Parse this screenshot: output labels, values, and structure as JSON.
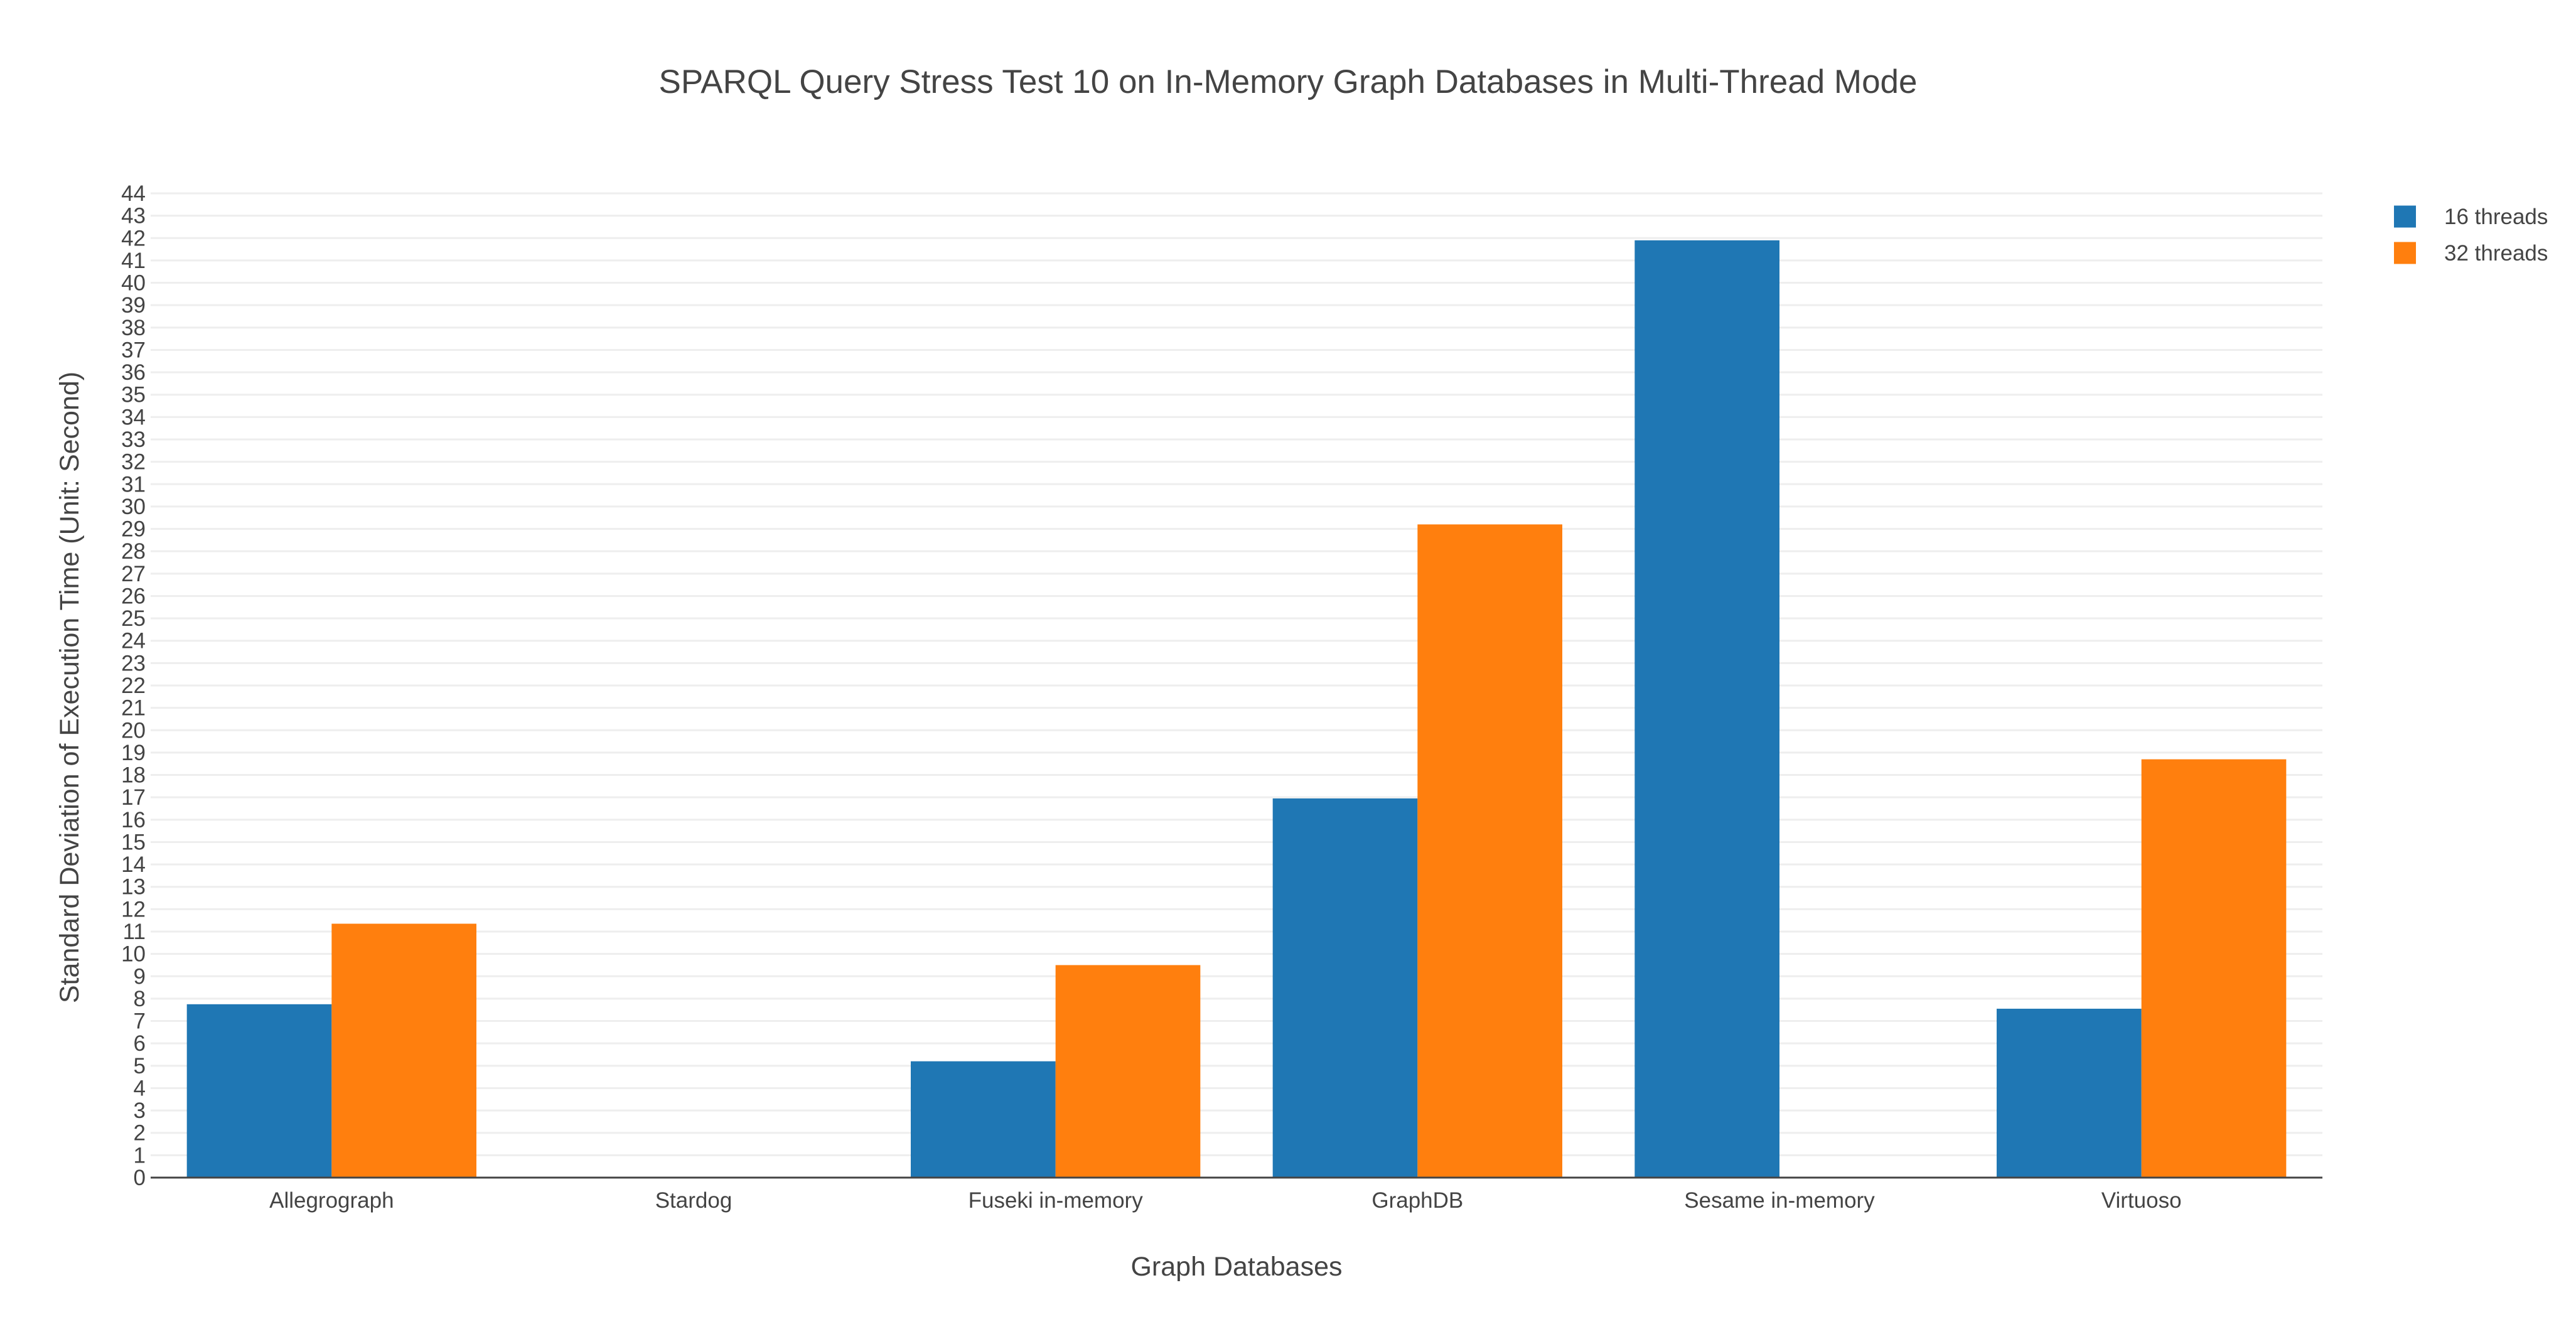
{
  "chart_data": {
    "type": "bar",
    "title": "SPARQL Query Stress Test 10 on In-Memory Graph Databases in Multi-Thread Mode",
    "xlabel": "Graph Databases",
    "ylabel": "Standard Deviation of Execution Time (Unit: Second)",
    "categories": [
      "Allegrograph",
      "Stardog",
      "Fuseki in-memory",
      "GraphDB",
      "Sesame in-memory",
      "Virtuoso"
    ],
    "series": [
      {
        "name": "16 threads",
        "color": "#1f77b4",
        "values": [
          7.75,
          0,
          5.2,
          16.95,
          41.9,
          7.55
        ]
      },
      {
        "name": "32 threads",
        "color": "#ff7f0e",
        "values": [
          11.35,
          0,
          9.5,
          29.2,
          0,
          18.7
        ]
      }
    ],
    "ylim": [
      0,
      44
    ],
    "ytick_step": 1,
    "grid": true,
    "legend_position": "top-right"
  }
}
